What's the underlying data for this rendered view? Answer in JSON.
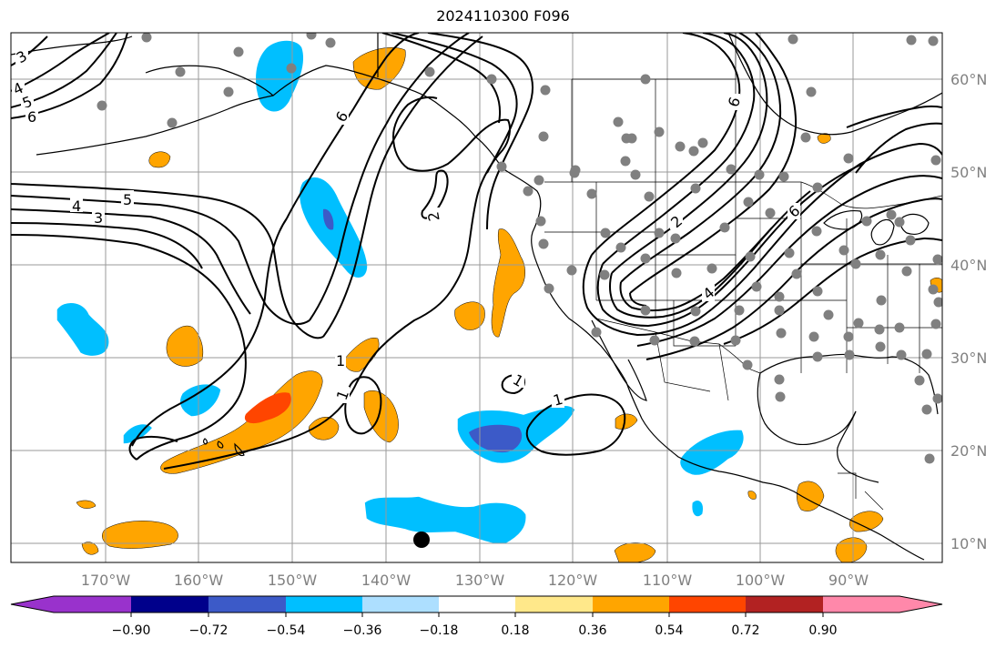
{
  "title": "2024110300 F096",
  "map": {
    "lon_labels": [
      "170°W",
      "160°W",
      "150°W",
      "140°W",
      "130°W",
      "120°W",
      "110°W",
      "100°W",
      "90°W"
    ],
    "lat_labels": [
      "60°N",
      "50°N",
      "40°N",
      "30°N",
      "20°N",
      "10°N"
    ],
    "contour_labels": [
      "3",
      "4",
      "5",
      "6",
      "4",
      "5",
      "3",
      "6",
      "1",
      "1",
      "1",
      "1",
      "6",
      "6",
      "4",
      "2",
      "2"
    ],
    "colors": {
      "dark_purple": "#9932CC",
      "navy": "#00008B",
      "royal_blue": "#3C5AC8",
      "sky_blue": "#00BFFF",
      "light_blue": "#ADDFFF",
      "white": "#FFFFFF",
      "light_yellow": "#FFE88A",
      "orange": "#FFA500",
      "orange_red": "#FF4500",
      "firebrick": "#B22222",
      "pink": "#FF88AA",
      "station": "#808080",
      "grid": "#9a9a9a"
    }
  },
  "colorbar": {
    "ticks": [
      "−0.90",
      "−0.72",
      "−0.54",
      "−0.36",
      "−0.18",
      "0.18",
      "0.36",
      "0.54",
      "0.72",
      "0.90"
    ]
  }
}
